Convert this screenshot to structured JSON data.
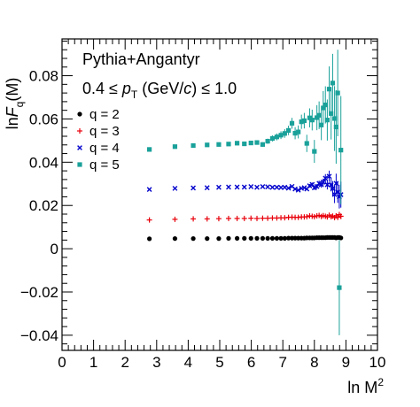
{
  "chart_data": {
    "type": "scatter",
    "annotations": {
      "generator": "Pythia+Angantyr",
      "kinematic_prefix": "0.4 ≤ ",
      "kinematic_symbol": "p",
      "kinematic_subscript": "T",
      "kinematic_units_open": " (GeV/",
      "kinematic_units_c": "c",
      "kinematic_suffix": ") ≤ 1.0"
    },
    "xlabel": {
      "prefix": "ln M",
      "sup": "2"
    },
    "ylabel": {
      "prefix": "ln",
      "F": "F",
      "sub": "q",
      "suffix": "(M)"
    },
    "xlim": [
      0,
      10
    ],
    "ylim": [
      -0.047,
      0.097
    ],
    "x_ticks": [
      "0",
      "1",
      "2",
      "3",
      "4",
      "5",
      "6",
      "7",
      "8",
      "9",
      "10"
    ],
    "y_ticks": [
      "−0.04",
      "−0.02",
      "0",
      "0.02",
      "0.04",
      "0.06",
      "0.08"
    ],
    "y_tick_values": [
      -0.04,
      -0.02,
      0,
      0.02,
      0.04,
      0.06,
      0.08
    ],
    "legend_position": "top-left",
    "series": [
      {
        "name": "q = 2",
        "color": "#000000",
        "marker": "circle",
        "points": [
          [
            2.77,
            0.0046
          ],
          [
            3.58,
            0.0047
          ],
          [
            4.16,
            0.0047
          ],
          [
            4.6,
            0.0047
          ],
          [
            4.97,
            0.0047
          ],
          [
            5.28,
            0.0048
          ],
          [
            5.55,
            0.0048
          ],
          [
            5.78,
            0.0048
          ],
          [
            5.99,
            0.0048
          ],
          [
            6.18,
            0.0048
          ],
          [
            6.36,
            0.0048
          ],
          [
            6.52,
            0.0048
          ],
          [
            6.67,
            0.0048
          ],
          [
            6.81,
            0.0048
          ],
          [
            6.94,
            0.0048
          ],
          [
            7.06,
            0.0048
          ],
          [
            7.18,
            0.0049
          ],
          [
            7.29,
            0.0049
          ],
          [
            7.39,
            0.0049
          ],
          [
            7.49,
            0.0049
          ],
          [
            7.59,
            0.0049
          ],
          [
            7.68,
            0.0049
          ],
          [
            7.76,
            0.005
          ],
          [
            7.85,
            0.005
          ],
          [
            7.93,
            0.005
          ],
          [
            8.0,
            0.005
          ],
          [
            8.08,
            0.0051
          ],
          [
            8.15,
            0.0051
          ],
          [
            8.22,
            0.0051
          ],
          [
            8.28,
            0.0051
          ],
          [
            8.35,
            0.0051
          ],
          [
            8.41,
            0.0052
          ],
          [
            8.47,
            0.0052
          ],
          [
            8.53,
            0.0052
          ],
          [
            8.58,
            0.0052
          ],
          [
            8.64,
            0.0052
          ],
          [
            8.69,
            0.005
          ],
          [
            8.74,
            0.0052
          ],
          [
            8.79,
            0.0052
          ],
          [
            8.84,
            0.005
          ]
        ],
        "errors": [
          0,
          0,
          0,
          0,
          0,
          0,
          0,
          0,
          0,
          0,
          0,
          0,
          0,
          0,
          0,
          0,
          0,
          0,
          0,
          0,
          0,
          0,
          0,
          0,
          0,
          0,
          0,
          0,
          0,
          0,
          0,
          0,
          0,
          0,
          0.0003,
          0.0004,
          0.0005,
          0.0006,
          0.0008,
          0.001
        ]
      },
      {
        "name": "q = 3",
        "color": "#e8000b",
        "marker": "plus",
        "points": [
          [
            2.77,
            0.0133
          ],
          [
            3.58,
            0.0136
          ],
          [
            4.16,
            0.0138
          ],
          [
            4.6,
            0.0138
          ],
          [
            4.97,
            0.0139
          ],
          [
            5.28,
            0.014
          ],
          [
            5.55,
            0.014
          ],
          [
            5.78,
            0.014
          ],
          [
            5.99,
            0.0141
          ],
          [
            6.18,
            0.014
          ],
          [
            6.36,
            0.0141
          ],
          [
            6.52,
            0.0141
          ],
          [
            6.67,
            0.0142
          ],
          [
            6.81,
            0.0142
          ],
          [
            6.94,
            0.0143
          ],
          [
            7.06,
            0.0143
          ],
          [
            7.18,
            0.0145
          ],
          [
            7.29,
            0.0146
          ],
          [
            7.39,
            0.0145
          ],
          [
            7.49,
            0.0145
          ],
          [
            7.59,
            0.0147
          ],
          [
            7.68,
            0.0147
          ],
          [
            7.76,
            0.0148
          ],
          [
            7.85,
            0.0152
          ],
          [
            7.93,
            0.015
          ],
          [
            8.0,
            0.0148
          ],
          [
            8.08,
            0.0152
          ],
          [
            8.15,
            0.0154
          ],
          [
            8.22,
            0.0149
          ],
          [
            8.28,
            0.0153
          ],
          [
            8.35,
            0.015
          ],
          [
            8.41,
            0.0147
          ],
          [
            8.47,
            0.0155
          ],
          [
            8.53,
            0.0148
          ],
          [
            8.58,
            0.0151
          ],
          [
            8.64,
            0.0144
          ],
          [
            8.69,
            0.0152
          ],
          [
            8.74,
            0.0145
          ],
          [
            8.79,
            0.0158
          ],
          [
            8.84,
            0.015
          ]
        ],
        "errors": [
          0,
          0,
          0,
          0,
          0,
          0,
          0,
          0,
          0,
          0,
          0,
          0,
          0,
          0,
          0,
          0,
          0,
          0,
          0,
          0,
          0,
          0,
          0,
          0.0003,
          0.0003,
          0.0004,
          0.0004,
          0.0004,
          0.0005,
          0.0005,
          0.0006,
          0.0006,
          0.0007,
          0.0007,
          0.0008,
          0.0009,
          0.001,
          0.0011,
          0.0012,
          0.0013
        ]
      },
      {
        "name": "q = 4",
        "color": "#0000cc",
        "marker": "cross",
        "points": [
          [
            2.77,
            0.0274
          ],
          [
            3.58,
            0.0279
          ],
          [
            4.16,
            0.0281
          ],
          [
            4.6,
            0.0282
          ],
          [
            4.97,
            0.0284
          ],
          [
            5.28,
            0.0285
          ],
          [
            5.55,
            0.0285
          ],
          [
            5.78,
            0.0285
          ],
          [
            5.99,
            0.0287
          ],
          [
            6.18,
            0.0284
          ],
          [
            6.36,
            0.0287
          ],
          [
            6.52,
            0.0286
          ],
          [
            6.67,
            0.0284
          ],
          [
            6.81,
            0.0284
          ],
          [
            6.94,
            0.0283
          ],
          [
            7.06,
            0.0284
          ],
          [
            7.18,
            0.028
          ],
          [
            7.29,
            0.0288
          ],
          [
            7.39,
            0.0276
          ],
          [
            7.49,
            0.0271
          ],
          [
            7.59,
            0.0279
          ],
          [
            7.68,
            0.0282
          ],
          [
            7.76,
            0.0276
          ],
          [
            7.85,
            0.0291
          ],
          [
            7.93,
            0.0297
          ],
          [
            8.0,
            0.0282
          ],
          [
            8.08,
            0.0288
          ],
          [
            8.15,
            0.0302
          ],
          [
            8.22,
            0.0296
          ],
          [
            8.28,
            0.0308
          ],
          [
            8.35,
            0.0326
          ],
          [
            8.41,
            0.0296
          ],
          [
            8.47,
            0.0335
          ],
          [
            8.53,
            0.0295
          ],
          [
            8.58,
            0.0278
          ],
          [
            8.64,
            0.0251
          ],
          [
            8.69,
            0.0302
          ],
          [
            8.74,
            0.0262
          ],
          [
            8.79,
            0.0241
          ],
          [
            8.84,
            0.025
          ]
        ],
        "errors": [
          0,
          0,
          0,
          0,
          0,
          0,
          0,
          0,
          0,
          0,
          0,
          0,
          0,
          0,
          0,
          0,
          0,
          0,
          0,
          0,
          0,
          0,
          0,
          0.0008,
          0.0009,
          0.001,
          0.0011,
          0.0013,
          0.0014,
          0.0016,
          0.0019,
          0.0022,
          0.0026,
          0.003,
          0.0035,
          0.004,
          0.0045,
          0.005,
          0.0055,
          0.006
        ]
      },
      {
        "name": "q = 5",
        "color": "#1aa19a",
        "marker": "square",
        "points": [
          [
            2.77,
            0.0459
          ],
          [
            3.58,
            0.0472
          ],
          [
            4.16,
            0.0477
          ],
          [
            4.6,
            0.048
          ],
          [
            4.97,
            0.0482
          ],
          [
            5.28,
            0.0484
          ],
          [
            5.55,
            0.0488
          ],
          [
            5.78,
            0.0485
          ],
          [
            5.99,
            0.0489
          ],
          [
            6.18,
            0.0491
          ],
          [
            6.36,
            0.0482
          ],
          [
            6.52,
            0.0497
          ],
          [
            6.67,
            0.051
          ],
          [
            6.81,
            0.0517
          ],
          [
            6.94,
            0.0525
          ],
          [
            7.06,
            0.0533
          ],
          [
            7.18,
            0.0547
          ],
          [
            7.29,
            0.058
          ],
          [
            7.39,
            0.0534
          ],
          [
            7.49,
            0.054
          ],
          [
            7.59,
            0.0587
          ],
          [
            7.68,
            0.0592
          ],
          [
            7.76,
            0.0487
          ],
          [
            7.85,
            0.0605
          ],
          [
            7.93,
            0.0595
          ],
          [
            8.0,
            0.045
          ],
          [
            8.08,
            0.0606
          ],
          [
            8.15,
            0.0617
          ],
          [
            8.22,
            0.0572
          ],
          [
            8.28,
            0.0651
          ],
          [
            8.35,
            0.0665
          ],
          [
            8.41,
            0.0595
          ],
          [
            8.47,
            0.0738
          ],
          [
            8.53,
            0.0625
          ],
          [
            8.58,
            0.0766
          ],
          [
            8.64,
            0.0602
          ],
          [
            8.69,
            0.0563
          ],
          [
            8.74,
            0.072
          ],
          [
            8.79,
            -0.018
          ],
          [
            8.84,
            0.0456
          ]
        ],
        "errors": [
          0,
          0,
          0,
          0,
          0,
          0,
          0,
          0,
          0,
          0,
          0.001,
          0.0012,
          0.0014,
          0.0016,
          0.0018,
          0.002,
          0.0022,
          0.0025,
          0.0028,
          0.003,
          0.0033,
          0.0036,
          0.004,
          0.0044,
          0.0048,
          0.0053,
          0.0058,
          0.0064,
          0.007,
          0.0078,
          0.0086,
          0.0095,
          0.0105,
          0.012,
          0.0135,
          0.015,
          0.017,
          0.02,
          0.022,
          0.025
        ]
      }
    ]
  }
}
